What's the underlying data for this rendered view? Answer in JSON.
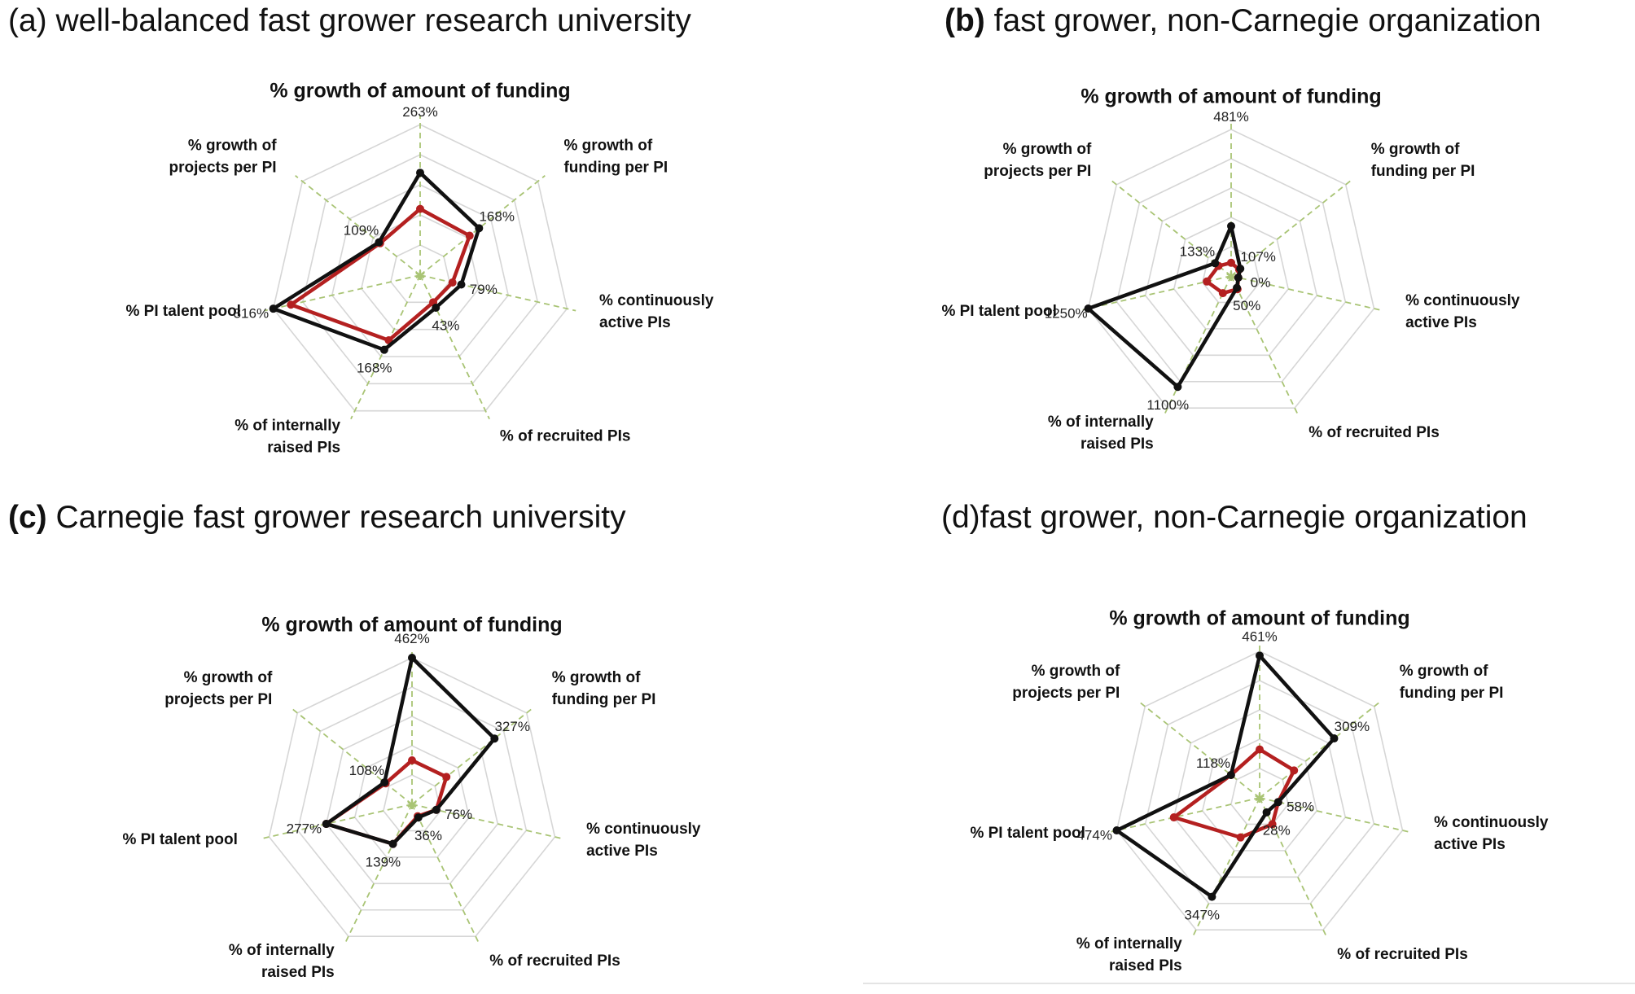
{
  "colors": {
    "series_black": "#111111",
    "series_red": "#b42020",
    "grid": "#d6d6d6",
    "axis": "#a9c475"
  },
  "panels": [
    {
      "title_letter": "(a)",
      "title_text": " well-balanced fast grower research university"
    },
    {
      "title_letter": "(b)",
      "title_text": " fast grower, non-Carnegie organization"
    },
    {
      "title_letter": "(c)",
      "title_text": " Carnegie fast grower research university"
    },
    {
      "title_letter": "(d)",
      "title_text": "fast grower, non-Carnegie organization"
    }
  ],
  "chart_data": [
    {
      "type": "radar",
      "title": "% growth of amount of funding",
      "categories": [
        "% growth of amount of funding",
        "% growth of funding per PI",
        "% continuously active PIs",
        "% of recruited PIs",
        "% of internally raised PIs",
        "% PI talent pool",
        "% growth of projects per PI"
      ],
      "category_lines": [
        [
          "% growth of amount of funding"
        ],
        [
          "% growth of",
          "funding per PI"
        ],
        [
          "% continuously",
          "active PIs"
        ],
        [
          "% of recruited PIs"
        ],
        [
          "%  of internally",
          "raised PIs"
        ],
        [
          "% PI talent pool"
        ],
        [
          "% growth of",
          "projects per PI"
        ]
      ],
      "data_labels": [
        "263%",
        "168%",
        "79%",
        "43%",
        "168%",
        "316%",
        "109%"
      ],
      "series": [
        {
          "name": "black",
          "values": [
            0.68,
            0.5,
            0.28,
            0.24,
            0.55,
            1.0,
            0.35
          ]
        },
        {
          "name": "red",
          "values": [
            0.44,
            0.42,
            0.22,
            0.2,
            0.48,
            0.88,
            0.34
          ]
        }
      ],
      "grid_rings": 5
    },
    {
      "type": "radar",
      "title": "% growth of amount of funding",
      "categories": [
        "% growth of amount of funding",
        "% growth of funding per PI",
        "% continuously active PIs",
        "% of recruited PIs",
        "% of internally raised PIs",
        "% PI talent pool",
        "% growth of projects per PI"
      ],
      "category_lines": [
        [
          "% growth of amount of funding"
        ],
        [
          "% growth of",
          "funding per PI"
        ],
        [
          "% continuously",
          "active PIs"
        ],
        [
          "% of recruited PIs"
        ],
        [
          "%  of internally",
          "raised PIs"
        ],
        [
          "% PI talent pool"
        ],
        [
          "% growth of",
          "projects per PI"
        ]
      ],
      "data_labels": [
        "481%",
        "107%",
        "0%",
        "50%",
        "1100%",
        "1250%",
        "133%"
      ],
      "series": [
        {
          "name": "black",
          "values": [
            0.34,
            0.08,
            0.05,
            0.09,
            0.84,
            1.0,
            0.14
          ]
        },
        {
          "name": "red",
          "values": [
            0.09,
            0.07,
            0.05,
            0.1,
            0.13,
            0.17,
            0.11
          ]
        }
      ],
      "grid_rings": 5
    },
    {
      "type": "radar",
      "title": "% growth of amount of funding",
      "categories": [
        "% growth of amount of funding",
        "% growth of funding per PI",
        "% continuously active PIs",
        "% of recruited PIs",
        "% of internally raised PIs",
        "% PI talent pool",
        "% growth of projects per PI"
      ],
      "category_lines": [
        [
          "% growth of amount of funding"
        ],
        [
          "% growth of",
          "funding per PI"
        ],
        [
          "% continuously",
          "active PIs"
        ],
        [
          "% of recruited PIs"
        ],
        [
          "%  of internally",
          "raised PIs"
        ],
        [
          "% PI talent pool"
        ],
        [
          "% growth of",
          "projects per PI"
        ]
      ],
      "data_labels": [
        "462%",
        "327%",
        "76%",
        "36%",
        "139%",
        "277%",
        "108%"
      ],
      "series": [
        {
          "name": "black",
          "values": [
            1.0,
            0.72,
            0.17,
            0.1,
            0.3,
            0.6,
            0.24
          ]
        },
        {
          "name": "red",
          "values": [
            0.3,
            0.3,
            0.17,
            0.09,
            0.3,
            0.6,
            0.23
          ]
        }
      ],
      "grid_rings": 5
    },
    {
      "type": "radar",
      "title": "% growth of amount of funding",
      "categories": [
        "% growth of amount of funding",
        "% growth of funding per PI",
        "% continuously active PIs",
        "% of recruited PIs",
        "% of internally raised PIs",
        "% PI talent pool",
        "% growth of projects per PI"
      ],
      "category_lines": [
        [
          "% growth of amount of funding"
        ],
        [
          "% growth of",
          "funding per PI"
        ],
        [
          "% continuously",
          "active PIs"
        ],
        [
          "% of recruited PIs"
        ],
        [
          "%  of internally",
          "raised PIs"
        ],
        [
          "% PI talent pool"
        ],
        [
          "% growth of",
          "projects per PI"
        ]
      ],
      "data_labels": [
        "461%",
        "309%",
        "58%",
        "28%",
        "347%",
        "474%",
        "118%"
      ],
      "series": [
        {
          "name": "black",
          "values": [
            0.97,
            0.65,
            0.13,
            0.11,
            0.75,
            1.0,
            0.25
          ]
        },
        {
          "name": "red",
          "values": [
            0.33,
            0.3,
            0.13,
            0.2,
            0.3,
            0.6,
            0.25
          ]
        }
      ],
      "grid_rings": 5
    }
  ]
}
